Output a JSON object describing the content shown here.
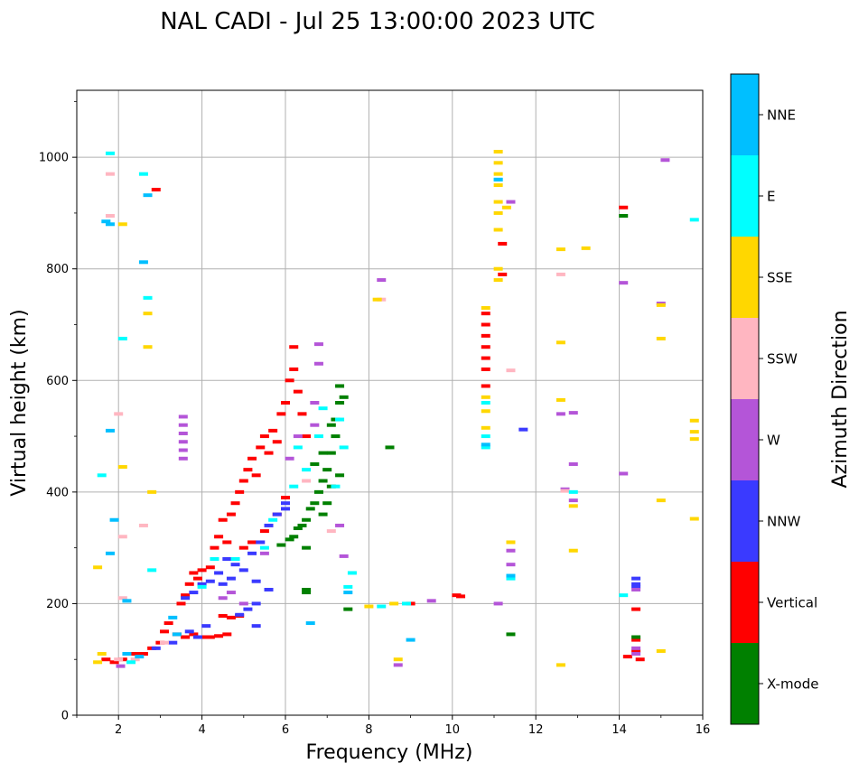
{
  "chart_data": {
    "type": "scatter",
    "title": "NAL CADI - Jul 25 13:00:00 2023 UTC",
    "xlabel": "Frequency (MHz)",
    "ylabel": "Virtual height (km)",
    "xlim": [
      1,
      16
    ],
    "ylim": [
      0,
      1120
    ],
    "xticks": [
      2,
      4,
      6,
      8,
      10,
      12,
      14,
      16
    ],
    "yticks": [
      0,
      200,
      400,
      600,
      800,
      1000
    ],
    "grid": true,
    "colorbar": {
      "title": "Azimuth Direction",
      "categories": [
        {
          "name": "X-mode",
          "color": "#008000"
        },
        {
          "name": "Vertical",
          "color": "#ff0000"
        },
        {
          "name": "NNW",
          "color": "#3a3aff"
        },
        {
          "name": "W",
          "color": "#b455d8"
        },
        {
          "name": "SSW",
          "color": "#ffb6c1"
        },
        {
          "name": "SSE",
          "color": "#ffd700"
        },
        {
          "name": "E",
          "color": "#00ffff"
        },
        {
          "name": "NNE",
          "color": "#00bfff"
        }
      ]
    },
    "series": [
      {
        "name": "Vertical",
        "points": [
          [
            1.7,
            100
          ],
          [
            1.9,
            95
          ],
          [
            2.1,
            100
          ],
          [
            2.4,
            110
          ],
          [
            2.6,
            110
          ],
          [
            2.8,
            120
          ],
          [
            3.0,
            130
          ],
          [
            3.1,
            150
          ],
          [
            3.2,
            165
          ],
          [
            3.4,
            145
          ],
          [
            3.6,
            140
          ],
          [
            3.8,
            145
          ],
          [
            4.0,
            140
          ],
          [
            4.2,
            140
          ],
          [
            4.4,
            142
          ],
          [
            4.6,
            145
          ],
          [
            3.5,
            200
          ],
          [
            3.6,
            215
          ],
          [
            3.7,
            235
          ],
          [
            3.8,
            255
          ],
          [
            3.9,
            245
          ],
          [
            4.0,
            260
          ],
          [
            4.2,
            265
          ],
          [
            4.3,
            300
          ],
          [
            4.4,
            320
          ],
          [
            4.5,
            350
          ],
          [
            4.6,
            310
          ],
          [
            4.7,
            360
          ],
          [
            4.8,
            380
          ],
          [
            4.9,
            400
          ],
          [
            5.0,
            300
          ],
          [
            5.0,
            420
          ],
          [
            5.1,
            440
          ],
          [
            5.2,
            460
          ],
          [
            5.3,
            430
          ],
          [
            5.4,
            480
          ],
          [
            5.5,
            500
          ],
          [
            5.6,
            470
          ],
          [
            5.7,
            510
          ],
          [
            5.8,
            490
          ],
          [
            5.9,
            540
          ],
          [
            6.0,
            560
          ],
          [
            6.1,
            600
          ],
          [
            6.2,
            620
          ],
          [
            6.2,
            660
          ],
          [
            6.3,
            580
          ],
          [
            6.4,
            540
          ],
          [
            6.5,
            500
          ],
          [
            5.2,
            310
          ],
          [
            5.5,
            330
          ],
          [
            5.8,
            360
          ],
          [
            6.0,
            390
          ],
          [
            4.5,
            178
          ],
          [
            4.7,
            175
          ],
          [
            4.9,
            178
          ],
          [
            10.1,
            215
          ],
          [
            10.2,
            213
          ],
          [
            9.0,
            200
          ],
          [
            11.2,
            845
          ],
          [
            11.2,
            790
          ],
          [
            14.1,
            910
          ],
          [
            14.4,
            190
          ],
          [
            14.4,
            135
          ],
          [
            14.4,
            115
          ],
          [
            14.5,
            100
          ],
          [
            14.2,
            105
          ],
          [
            2.9,
            942
          ],
          [
            10.8,
            720
          ],
          [
            10.8,
            700
          ],
          [
            10.8,
            680
          ],
          [
            10.8,
            660
          ],
          [
            10.8,
            640
          ],
          [
            10.8,
            620
          ],
          [
            10.8,
            590
          ]
        ]
      },
      {
        "name": "X-mode",
        "points": [
          [
            5.9,
            305
          ],
          [
            6.1,
            315
          ],
          [
            6.2,
            320
          ],
          [
            6.3,
            335
          ],
          [
            6.4,
            340
          ],
          [
            6.5,
            350
          ],
          [
            6.6,
            370
          ],
          [
            6.7,
            380
          ],
          [
            6.8,
            400
          ],
          [
            6.9,
            420
          ],
          [
            7.0,
            440
          ],
          [
            7.1,
            470
          ],
          [
            7.2,
            500
          ],
          [
            7.2,
            530
          ],
          [
            7.3,
            560
          ],
          [
            7.3,
            590
          ],
          [
            6.9,
            360
          ],
          [
            7.0,
            380
          ],
          [
            7.1,
            410
          ],
          [
            7.3,
            430
          ],
          [
            6.7,
            450
          ],
          [
            6.9,
            470
          ],
          [
            7.1,
            520
          ],
          [
            6.5,
            300
          ],
          [
            7.4,
            570
          ],
          [
            7.5,
            190
          ],
          [
            8.5,
            480
          ],
          [
            14.1,
            895
          ],
          [
            14.4,
            140
          ],
          [
            11.4,
            145
          ],
          [
            6.5,
            220
          ],
          [
            6.5,
            225
          ]
        ]
      },
      {
        "name": "NNW",
        "points": [
          [
            3.6,
            210
          ],
          [
            3.8,
            220
          ],
          [
            4.0,
            235
          ],
          [
            4.2,
            240
          ],
          [
            4.4,
            255
          ],
          [
            4.6,
            280
          ],
          [
            4.8,
            270
          ],
          [
            5.0,
            260
          ],
          [
            5.2,
            290
          ],
          [
            5.4,
            310
          ],
          [
            5.6,
            340
          ],
          [
            5.8,
            360
          ],
          [
            6.0,
            380
          ],
          [
            4.9,
            180
          ],
          [
            5.1,
            190
          ],
          [
            5.3,
            200
          ],
          [
            5.3,
            160
          ],
          [
            3.9,
            140
          ],
          [
            3.7,
            150
          ],
          [
            4.1,
            160
          ],
          [
            4.5,
            235
          ],
          [
            4.7,
            245
          ],
          [
            5.3,
            240
          ],
          [
            5.6,
            225
          ],
          [
            6.0,
            370
          ],
          [
            11.7,
            512
          ],
          [
            14.4,
            245
          ],
          [
            14.4,
            235
          ],
          [
            14.4,
            230
          ],
          [
            3.3,
            130
          ],
          [
            2.9,
            120
          ]
        ]
      },
      {
        "name": "W",
        "points": [
          [
            3.55,
            460
          ],
          [
            3.55,
            475
          ],
          [
            3.55,
            490
          ],
          [
            3.55,
            505
          ],
          [
            3.55,
            520
          ],
          [
            3.55,
            535
          ],
          [
            4.5,
            210
          ],
          [
            4.7,
            220
          ],
          [
            5.0,
            200
          ],
          [
            5.5,
            290
          ],
          [
            6.1,
            460
          ],
          [
            6.3,
            500
          ],
          [
            6.7,
            520
          ],
          [
            6.7,
            560
          ],
          [
            6.8,
            665
          ],
          [
            6.8,
            630
          ],
          [
            7.3,
            340
          ],
          [
            7.4,
            285
          ],
          [
            8.3,
            780
          ],
          [
            8.7,
            90
          ],
          [
            9.5,
            205
          ],
          [
            11.1,
            200
          ],
          [
            11.4,
            920
          ],
          [
            11.4,
            295
          ],
          [
            11.4,
            270
          ],
          [
            12.6,
            540
          ],
          [
            12.7,
            405
          ],
          [
            12.9,
            542
          ],
          [
            12.9,
            450
          ],
          [
            12.9,
            385
          ],
          [
            14.1,
            775
          ],
          [
            14.1,
            433
          ],
          [
            14.4,
            225
          ],
          [
            14.4,
            120
          ],
          [
            14.4,
            110
          ],
          [
            15.0,
            738
          ],
          [
            15.1,
            995
          ],
          [
            2.05,
            88
          ]
        ]
      },
      {
        "name": "SSW",
        "points": [
          [
            1.8,
            970
          ],
          [
            1.8,
            895
          ],
          [
            2.0,
            540
          ],
          [
            2.1,
            320
          ],
          [
            2.1,
            210
          ],
          [
            2.6,
            340
          ],
          [
            3.1,
            130
          ],
          [
            2.4,
            100
          ],
          [
            2.0,
            100
          ],
          [
            11.4,
            618
          ],
          [
            12.6,
            790
          ],
          [
            12.7,
            402
          ],
          [
            6.5,
            420
          ],
          [
            7.1,
            330
          ],
          [
            8.3,
            745
          ]
        ]
      },
      {
        "name": "SSE",
        "points": [
          [
            1.5,
            265
          ],
          [
            1.5,
            95
          ],
          [
            1.6,
            110
          ],
          [
            2.1,
            880
          ],
          [
            2.1,
            445
          ],
          [
            2.7,
            720
          ],
          [
            2.7,
            660
          ],
          [
            2.8,
            400
          ],
          [
            8.0,
            195
          ],
          [
            8.2,
            745
          ],
          [
            8.7,
            100
          ],
          [
            8.6,
            200
          ],
          [
            10.8,
            730
          ],
          [
            10.8,
            570
          ],
          [
            10.8,
            545
          ],
          [
            10.8,
            515
          ],
          [
            11.1,
            1010
          ],
          [
            11.1,
            990
          ],
          [
            11.1,
            970
          ],
          [
            11.1,
            950
          ],
          [
            11.1,
            920
          ],
          [
            11.1,
            900
          ],
          [
            11.1,
            870
          ],
          [
            11.1,
            800
          ],
          [
            11.1,
            780
          ],
          [
            11.3,
            910
          ],
          [
            11.4,
            310
          ],
          [
            12.6,
            835
          ],
          [
            12.6,
            668
          ],
          [
            12.6,
            565
          ],
          [
            12.6,
            90
          ],
          [
            12.9,
            375
          ],
          [
            12.9,
            295
          ],
          [
            13.2,
            837
          ],
          [
            15.0,
            735
          ],
          [
            15.0,
            675
          ],
          [
            15.0,
            385
          ],
          [
            15.0,
            115
          ],
          [
            15.8,
            528
          ],
          [
            15.8,
            508
          ],
          [
            15.8,
            495
          ],
          [
            15.8,
            352
          ]
        ]
      },
      {
        "name": "E",
        "points": [
          [
            1.6,
            430
          ],
          [
            1.8,
            1007
          ],
          [
            2.1,
            675
          ],
          [
            2.6,
            970
          ],
          [
            2.7,
            748
          ],
          [
            2.8,
            260
          ],
          [
            4.0,
            230
          ],
          [
            4.3,
            280
          ],
          [
            4.8,
            280
          ],
          [
            5.5,
            300
          ],
          [
            5.7,
            350
          ],
          [
            6.2,
            410
          ],
          [
            6.3,
            480
          ],
          [
            6.5,
            440
          ],
          [
            6.8,
            500
          ],
          [
            6.9,
            550
          ],
          [
            7.3,
            530
          ],
          [
            7.4,
            480
          ],
          [
            7.2,
            410
          ],
          [
            7.5,
            230
          ],
          [
            7.6,
            255
          ],
          [
            8.3,
            195
          ],
          [
            8.9,
            200
          ],
          [
            10.8,
            560
          ],
          [
            10.8,
            480
          ],
          [
            10.8,
            500
          ],
          [
            11.1,
            960
          ],
          [
            11.4,
            245
          ],
          [
            12.9,
            400
          ],
          [
            14.1,
            215
          ],
          [
            15.8,
            888
          ],
          [
            2.3,
            95
          ]
        ]
      },
      {
        "name": "NNE",
        "points": [
          [
            1.7,
            885
          ],
          [
            1.8,
            880
          ],
          [
            1.8,
            510
          ],
          [
            1.9,
            350
          ],
          [
            1.8,
            290
          ],
          [
            2.2,
            205
          ],
          [
            2.6,
            812
          ],
          [
            2.7,
            932
          ],
          [
            3.3,
            175
          ],
          [
            3.4,
            145
          ],
          [
            6.6,
            165
          ],
          [
            7.5,
            220
          ],
          [
            9.0,
            135
          ],
          [
            10.8,
            485
          ],
          [
            11.1,
            960
          ],
          [
            11.4,
            250
          ],
          [
            2.2,
            110
          ],
          [
            2.5,
            105
          ]
        ]
      }
    ]
  }
}
